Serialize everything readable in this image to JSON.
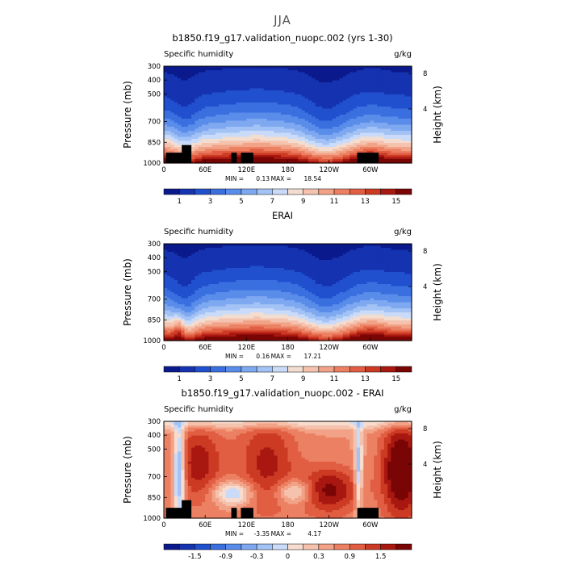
{
  "figure": {
    "title": "JJA"
  },
  "colors": {
    "abs_scale": [
      "#0a1a8c",
      "#1533b0",
      "#2150cf",
      "#3a6fe0",
      "#5a8cea",
      "#7ea8f0",
      "#a3c2f5",
      "#c9dbf8",
      "#f3dcd0",
      "#f5c2ad",
      "#f2a286",
      "#ec8063",
      "#e15e43",
      "#cc3a24",
      "#a81710",
      "#7a0505"
    ],
    "diff_scale": [
      "#0a1a8c",
      "#1533b0",
      "#2150cf",
      "#3a6fe0",
      "#5a8cea",
      "#7ea8f0",
      "#a3c2f5",
      "#c9dbf8",
      "#f7dccf",
      "#f5c2ad",
      "#f2a286",
      "#ec8063",
      "#e15e43",
      "#cc3a24",
      "#a81710",
      "#7a0505"
    ],
    "topography": "#000000"
  },
  "chart_data": [
    {
      "type": "heatmap",
      "title": "b1850.f19_g17.validation_nuopc.002 (yrs 1-30)",
      "left_label": "Specific humidity",
      "right_label": "g/kg",
      "ylabel": "Pressure (mb)",
      "y2label": "Height (km)",
      "x_ticks": [
        "0",
        "60E",
        "120E",
        "180",
        "120W",
        "60W"
      ],
      "x_tick_lon": [
        0,
        60,
        120,
        180,
        240,
        300
      ],
      "xlim": [
        0,
        360
      ],
      "y_ticks": [
        "300",
        "400",
        "500",
        "700",
        "850",
        "1000"
      ],
      "y_tick_p": [
        300,
        400,
        500,
        700,
        850,
        1000
      ],
      "ylim": [
        300,
        1000
      ],
      "y2_ticks": [
        "8",
        "4"
      ],
      "min_label": "MIN =",
      "min": "0.13",
      "max_label": "MAX =",
      "max": "18.54",
      "colorbar_labels": [
        "1",
        "3",
        "5",
        "7",
        "9",
        "11",
        "13",
        "15"
      ],
      "colorbar_label_index": [
        1,
        3,
        5,
        7,
        9,
        11,
        13,
        15
      ],
      "levels": [
        1,
        2,
        3,
        4,
        5,
        6,
        7,
        8,
        9,
        10,
        11,
        12,
        13,
        14,
        15
      ],
      "mode": "abs"
    },
    {
      "type": "heatmap",
      "title": "ERAI",
      "left_label": "Specific humidity",
      "right_label": "g/kg",
      "ylabel": "Pressure (mb)",
      "y2label": "Height (km)",
      "x_ticks": [
        "0",
        "60E",
        "120E",
        "180",
        "120W",
        "60W"
      ],
      "x_tick_lon": [
        0,
        60,
        120,
        180,
        240,
        300
      ],
      "xlim": [
        0,
        360
      ],
      "y_ticks": [
        "300",
        "400",
        "500",
        "700",
        "850",
        "1000"
      ],
      "y_tick_p": [
        300,
        400,
        500,
        700,
        850,
        1000
      ],
      "ylim": [
        300,
        1000
      ],
      "y2_ticks": [
        "8",
        "4"
      ],
      "min_label": "MIN =",
      "min": "0.16",
      "max_label": "MAX =",
      "max": "17.21",
      "colorbar_labels": [
        "1",
        "3",
        "5",
        "7",
        "9",
        "11",
        "13",
        "15"
      ],
      "colorbar_label_index": [
        1,
        3,
        5,
        7,
        9,
        11,
        13,
        15
      ],
      "levels": [
        1,
        2,
        3,
        4,
        5,
        6,
        7,
        8,
        9,
        10,
        11,
        12,
        13,
        14,
        15
      ],
      "mode": "abs"
    },
    {
      "type": "heatmap",
      "title": "b1850.f19_g17.validation_nuopc.002 - ERAI",
      "left_label": "Specific humidity",
      "right_label": "g/kg",
      "ylabel": "Pressure (mb)",
      "y2label": "Height (km)",
      "x_ticks": [
        "0",
        "60E",
        "120E",
        "180",
        "120W",
        "60W"
      ],
      "x_tick_lon": [
        0,
        60,
        120,
        180,
        240,
        300
      ],
      "xlim": [
        0,
        360
      ],
      "y_ticks": [
        "300",
        "400",
        "500",
        "700",
        "850",
        "1000"
      ],
      "y_tick_p": [
        300,
        400,
        500,
        700,
        850,
        1000
      ],
      "ylim": [
        300,
        1000
      ],
      "y2_ticks": [
        "8",
        "4"
      ],
      "min_label": "MIN =",
      "min": "-3.35",
      "max_label": "MAX =",
      "max": "4.17",
      "colorbar_labels": [
        "-1.5",
        "-0.9",
        "-0.3",
        "0",
        "0.3",
        "0.9",
        "1.5"
      ],
      "colorbar_label_index": [
        2,
        4,
        6,
        8,
        10,
        12,
        14
      ],
      "levels": [
        -2.1,
        -1.8,
        -1.5,
        -1.2,
        -0.9,
        -0.6,
        -0.3,
        0,
        0.3,
        0.6,
        0.9,
        1.2,
        1.5,
        1.8,
        2.1
      ],
      "mode": "diff"
    }
  ]
}
